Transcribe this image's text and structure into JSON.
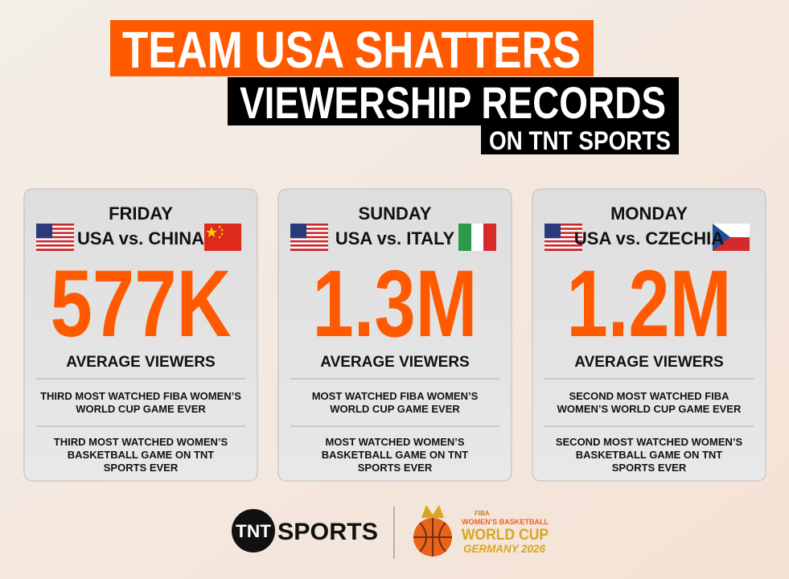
{
  "header": {
    "line1": "TEAM USA SHATTERS",
    "line2": "VIEWERSHIP RECORDS",
    "line3": "ON TNT SPORTS"
  },
  "cards": [
    {
      "day": "FRIDAY",
      "matchup": "USA vs. CHINA",
      "viewers": "577K",
      "viewers_label": "AVERAGE VIEWERS",
      "facts": [
        [
          "THIRD MOST WATCHED FIBA WOMEN’S",
          "WORLD CUP GAME EVER"
        ],
        [
          "THIRD MOST WATCHED WOMEN’S",
          "BASKETBALL GAME ON TNT",
          "SPORTS EVER"
        ]
      ]
    },
    {
      "day": "SUNDAY",
      "matchup": "USA vs. ITALY",
      "viewers": "1.3M",
      "viewers_label": "AVERAGE VIEWERS",
      "facts": [
        [
          "MOST WATCHED FIBA WOMEN’S",
          "WORLD CUP GAME EVER"
        ],
        [
          "MOST WATCHED WOMEN’S",
          "BASKETBALL GAME ON TNT",
          "SPORTS EVER"
        ]
      ]
    },
    {
      "day": "MONDAY",
      "matchup": "USA vs. CZECHIA",
      "viewers": "1.2M",
      "viewers_label": "AVERAGE VIEWERS",
      "facts": [
        [
          "SECOND MOST WATCHED FIBA",
          "WOMEN’S WORLD CUP GAME EVER"
        ],
        [
          "SECOND MOST WATCHED WOMEN’S",
          "BASKETBALL GAME ON TNT",
          "SPORTS EVER"
        ]
      ]
    }
  ],
  "footer": {
    "tnt": "TNT",
    "sports": "SPORTS",
    "fiba": "FIBA",
    "wc_line1": "WOMEN’S BASKETBALL",
    "wc_line2": "WORLD CUP",
    "wc_line3": "GERMANY 2026"
  }
}
